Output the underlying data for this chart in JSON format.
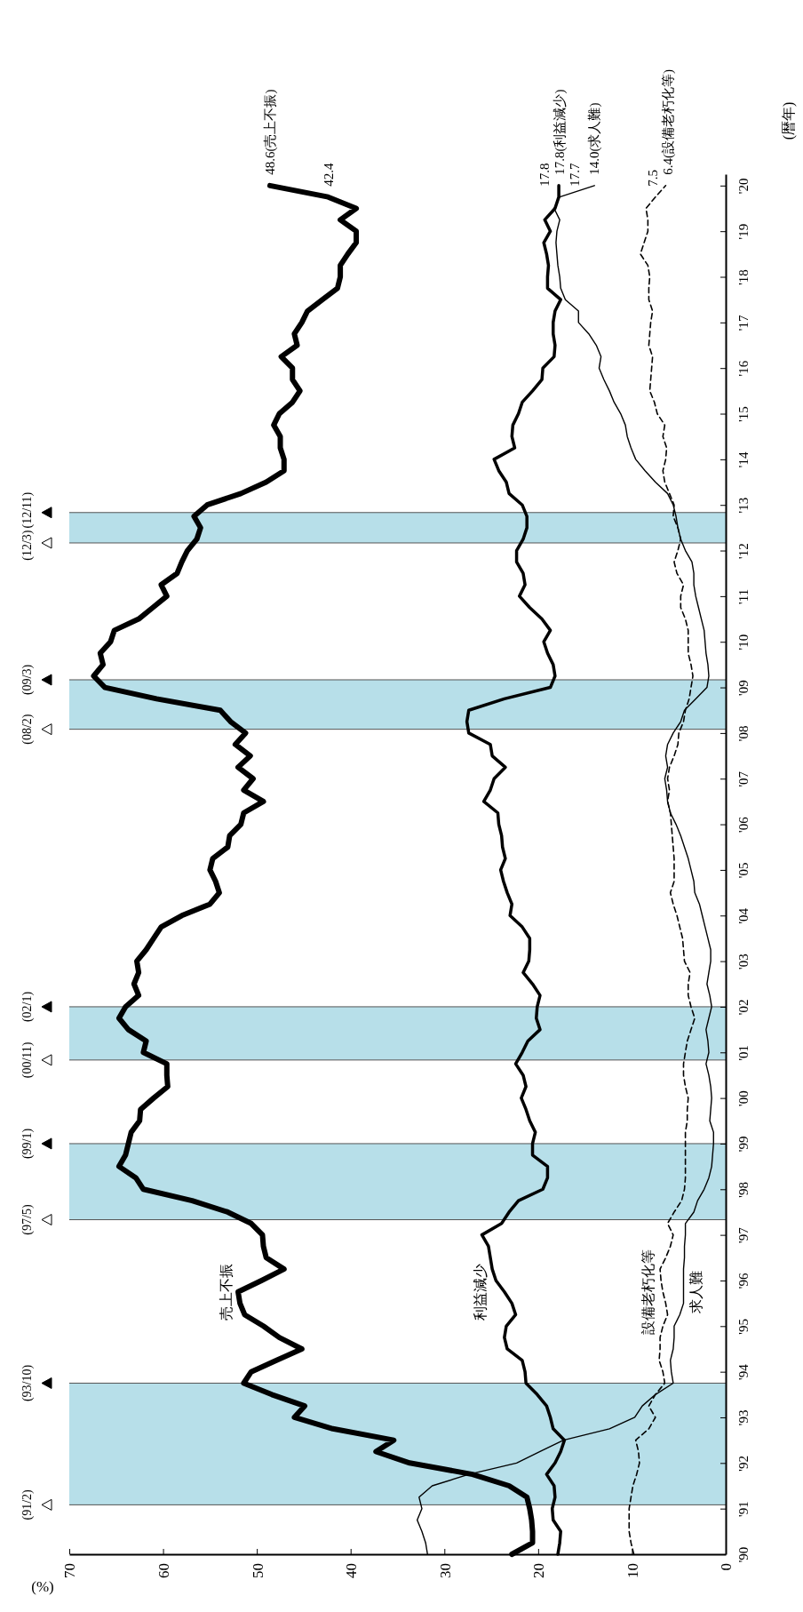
{
  "chart_data": {
    "type": "line",
    "xlabel": "(%)",
    "ylabel": "(暦年)",
    "xlim": [
      70,
      0
    ],
    "xticks": [
      0,
      10,
      20,
      30,
      40,
      50,
      60,
      70
    ],
    "ylim": [
      1990,
      2020.25
    ],
    "yticks": [
      {
        "value": 1990,
        "label": "'90"
      },
      {
        "value": 1991,
        "label": "'91"
      },
      {
        "value": 1992,
        "label": "'92"
      },
      {
        "value": 1993,
        "label": "'93"
      },
      {
        "value": 1994,
        "label": "'94"
      },
      {
        "value": 1995,
        "label": "'95"
      },
      {
        "value": 1996,
        "label": "'96"
      },
      {
        "value": 1997,
        "label": "'97"
      },
      {
        "value": 1998,
        "label": "'98"
      },
      {
        "value": 1999,
        "label": "'99"
      },
      {
        "value": 2000,
        "label": "'00"
      },
      {
        "value": 2001,
        "label": "'01"
      },
      {
        "value": 2002,
        "label": "'02"
      },
      {
        "value": 2003,
        "label": "'03"
      },
      {
        "value": 2004,
        "label": "'04"
      },
      {
        "value": 2005,
        "label": "'05"
      },
      {
        "value": 2006,
        "label": "'06"
      },
      {
        "value": 2007,
        "label": "'07"
      },
      {
        "value": 2008,
        "label": "'08"
      },
      {
        "value": 2009,
        "label": "'09"
      },
      {
        "value": 2010,
        "label": "'10"
      },
      {
        "value": 2011,
        "label": "'11"
      },
      {
        "value": 2012,
        "label": "'12"
      },
      {
        "value": 2013,
        "label": "'13"
      },
      {
        "value": 2014,
        "label": "'14"
      },
      {
        "value": 2015,
        "label": "'15"
      },
      {
        "value": 2016,
        "label": "'16"
      },
      {
        "value": 2017,
        "label": "'17"
      },
      {
        "value": 2018,
        "label": "'18"
      },
      {
        "value": 2019,
        "label": "'19"
      },
      {
        "value": 2020,
        "label": "'20"
      }
    ],
    "series": [
      {
        "name": "売上不振",
        "color": "#000000",
        "line_style": "solid",
        "x": [
          22.8,
          20.6,
          20.6,
          20.7,
          20.9,
          21.2,
          23.1,
          27.0,
          33.7,
          37.3,
          35.4,
          41.9,
          46.0,
          44.9,
          48.4,
          51.4,
          50.6,
          47.9,
          45.2,
          47.6,
          49.3,
          51.3,
          51.8,
          52.0,
          49.5,
          47.1,
          49.0,
          49.3,
          49.4,
          50.6,
          53.1,
          56.9,
          62.1,
          62.9,
          64.7,
          64.0,
          63.7,
          63.4,
          62.5,
          62.4,
          61.0,
          59.5,
          59.6,
          59.6,
          62.1,
          61.8,
          63.7,
          64.7,
          64.0,
          62.6,
          63.1,
          62.6,
          62.8,
          61.8,
          61.0,
          60.2,
          58.0,
          55.0,
          54.0,
          54.4,
          55.0,
          54.7,
          53.1,
          52.9,
          51.7,
          51.4,
          49.3,
          51.4,
          50.4,
          52.0,
          50.7,
          52.3,
          51.2,
          52.8,
          53.9,
          60.7,
          66.2,
          67.4,
          66.4,
          66.7,
          65.6,
          65.2,
          62.6,
          61.1,
          59.6,
          60.2,
          58.5,
          58.0,
          57.4,
          56.4,
          56.0,
          56.7,
          55.3,
          51.7,
          49.0,
          47.1,
          47.1,
          47.5,
          47.5,
          48.2,
          47.6,
          46.2,
          45.4,
          46.2,
          46.2,
          47.4,
          45.7,
          46.0,
          45.2,
          44.6,
          43.0,
          41.4,
          41.1,
          41.1,
          40.3,
          39.4,
          39.4,
          41.1,
          39.4,
          42.4,
          48.6
        ],
        "values": [
          1990,
          1990.25,
          1990.5,
          1990.75,
          1991,
          1991.25,
          1991.5,
          1991.75,
          1992,
          1992.25,
          1992.5,
          1992.75,
          1993,
          1993.25,
          1993.5,
          1993.75,
          1994,
          1994.25,
          1994.5,
          1994.75,
          1995,
          1995.25,
          1995.5,
          1995.75,
          1996,
          1996.25,
          1996.5,
          1996.75,
          1997,
          1997.25,
          1997.5,
          1997.75,
          1998,
          1998.25,
          1998.5,
          1998.75,
          1999,
          1999.25,
          1999.5,
          1999.75,
          2000,
          2000.25,
          2000.5,
          2000.75,
          2001,
          2001.25,
          2001.5,
          2001.75,
          2002,
          2002.25,
          2002.5,
          2002.75,
          2003,
          2003.25,
          2003.5,
          2003.75,
          2004,
          2004.25,
          2004.5,
          2004.75,
          2005,
          2005.25,
          2005.5,
          2005.75,
          2006,
          2006.25,
          2006.5,
          2006.75,
          2007,
          2007.25,
          2007.5,
          2007.75,
          2008,
          2008.25,
          2008.5,
          2008.75,
          2009,
          2009.25,
          2009.5,
          2009.75,
          2010,
          2010.25,
          2010.5,
          2010.75,
          2011,
          2011.25,
          2011.5,
          2011.75,
          2012,
          2012.25,
          2012.5,
          2012.75,
          2013,
          2013.25,
          2013.5,
          2013.75,
          2014,
          2014.25,
          2014.5,
          2014.75,
          2015,
          2015.25,
          2015.5,
          2015.75,
          2016,
          2016.25,
          2016.5,
          2016.75,
          2017,
          2017.25,
          2017.5,
          2017.75,
          2018,
          2018.25,
          2018.5,
          2018.75,
          2019,
          2019.25,
          2019.5,
          2019.75,
          2020
        ]
      },
      {
        "name": "利益減少",
        "color": "#000000",
        "line_style": "solid",
        "x": [
          17.9,
          17.7,
          17.6,
          18.4,
          18.5,
          18.2,
          18.3,
          19.1,
          18.2,
          17.6,
          17.2,
          18.4,
          18.7,
          19.1,
          20.1,
          21.3,
          21.4,
          21.7,
          23.3,
          23.6,
          23.4,
          22.4,
          22.8,
          23.6,
          24.5,
          24.9,
          25.1,
          25.3,
          26.0,
          23.9,
          23.1,
          22.1,
          19.5,
          19.0,
          19.0,
          20.6,
          20.6,
          20.3,
          20.9,
          21.3,
          21.8,
          21.3,
          21.6,
          22.4,
          21.7,
          21.1,
          19.8,
          20.2,
          20.1,
          19.8,
          20.6,
          21.6,
          21.0,
          20.9,
          20.9,
          21.7,
          23.0,
          22.8,
          23.3,
          23.7,
          24.0,
          23.5,
          23.8,
          23.9,
          24.2,
          24.3,
          25.8,
          25.1,
          24.7,
          23.5,
          24.9,
          25.1,
          27.4,
          27.6,
          27.4,
          23.6,
          18.7,
          18.2,
          18.4,
          19.0,
          19.4,
          18.7,
          19.6,
          20.9,
          22.0,
          21.4,
          21.6,
          22.3,
          22.3,
          21.6,
          21.2,
          21.2,
          21.7,
          23.1,
          23.4,
          24.2,
          24.7,
          22.5,
          22.8,
          22.7,
          22.1,
          21.7,
          20.6,
          19.6,
          19.5,
          18.3,
          18.2,
          18.4,
          18.4,
          18.2,
          17.6,
          19.0,
          19.0,
          18.9,
          19.1,
          19.4,
          18.7,
          19.3,
          18.2,
          17.8,
          17.8
        ],
        "values": [
          1990,
          1990.25,
          1990.5,
          1990.75,
          1991,
          1991.25,
          1991.5,
          1991.75,
          1992,
          1992.25,
          1992.5,
          1992.75,
          1993,
          1993.25,
          1993.5,
          1993.75,
          1994,
          1994.25,
          1994.5,
          1994.75,
          1995,
          1995.25,
          1995.5,
          1995.75,
          1996,
          1996.25,
          1996.5,
          1996.75,
          1997,
          1997.25,
          1997.5,
          1997.75,
          1998,
          1998.25,
          1998.5,
          1998.75,
          1999,
          1999.25,
          1999.5,
          1999.75,
          2000,
          2000.25,
          2000.5,
          2000.75,
          2001,
          2001.25,
          2001.5,
          2001.75,
          2002,
          2002.25,
          2002.5,
          2002.75,
          2003,
          2003.25,
          2003.5,
          2003.75,
          2004,
          2004.25,
          2004.5,
          2004.75,
          2005,
          2005.25,
          2005.5,
          2005.75,
          2006,
          2006.25,
          2006.5,
          2006.75,
          2007,
          2007.25,
          2007.5,
          2007.75,
          2008,
          2008.25,
          2008.5,
          2008.75,
          2009,
          2009.25,
          2009.5,
          2009.75,
          2010,
          2010.25,
          2010.5,
          2010.75,
          2011,
          2011.25,
          2011.5,
          2011.75,
          2012,
          2012.25,
          2012.5,
          2012.75,
          2013,
          2013.25,
          2013.5,
          2013.75,
          2014,
          2014.25,
          2014.5,
          2014.75,
          2015,
          2015.25,
          2015.5,
          2015.75,
          2016,
          2016.25,
          2016.5,
          2016.75,
          2017,
          2017.25,
          2017.5,
          2017.75,
          2018,
          2018.25,
          2018.5,
          2018.75,
          2019,
          2019.25,
          2019.5,
          2019.75,
          2020
        ]
      },
      {
        "name": "設備老朽化等",
        "color": "#000000",
        "line_style": "dashed",
        "x": [
          9.8,
          10.1,
          10.3,
          10.3,
          10.3,
          10.1,
          9.9,
          9.5,
          9.2,
          9.3,
          9.6,
          8.2,
          7.5,
          8.2,
          7.5,
          6.5,
          6.7,
          7.1,
          7.0,
          7.0,
          6.7,
          6.2,
          6.4,
          6.7,
          6.9,
          7.0,
          6.4,
          5.9,
          5.6,
          6.2,
          5.5,
          4.7,
          4.4,
          4.3,
          4.3,
          4.3,
          4.3,
          4.3,
          4.1,
          4.1,
          4.0,
          4.3,
          4.5,
          4.5,
          4.3,
          4.1,
          3.7,
          3.3,
          3.7,
          4.0,
          4.0,
          3.8,
          4.4,
          4.5,
          4.6,
          4.9,
          5.2,
          5.6,
          5.9,
          5.5,
          5.5,
          5.5,
          5.6,
          5.7,
          5.8,
          5.9,
          6.2,
          6.0,
          6.2,
          6.0,
          5.5,
          5.1,
          5.0,
          4.5,
          4.3,
          3.9,
          3.7,
          3.5,
          3.7,
          4.0,
          4.0,
          4.0,
          4.3,
          4.8,
          4.8,
          4.5,
          5.2,
          5.5,
          5.1,
          4.8,
          5.1,
          5.6,
          5.5,
          6.0,
          6.5,
          6.7,
          6.4,
          6.3,
          6.7,
          6.5,
          7.3,
          7.6,
          8.1,
          8.0,
          7.9,
          7.8,
          8.2,
          8.1,
          8.0,
          7.8,
          8.2,
          8.2,
          8.1,
          8.3,
          9.1,
          8.7,
          8.3,
          8.3,
          8.5,
          7.5,
          6.4
        ],
        "values": [
          1990,
          1990.25,
          1990.5,
          1990.75,
          1991,
          1991.25,
          1991.5,
          1991.75,
          1992,
          1992.25,
          1992.5,
          1992.75,
          1993,
          1993.25,
          1993.5,
          1993.75,
          1994,
          1994.25,
          1994.5,
          1994.75,
          1995,
          1995.25,
          1995.5,
          1995.75,
          1996,
          1996.25,
          1996.5,
          1996.75,
          1997,
          1997.25,
          1997.5,
          1997.75,
          1998,
          1998.25,
          1998.5,
          1998.75,
          1999,
          1999.25,
          1999.5,
          1999.75,
          2000,
          2000.25,
          2000.5,
          2000.75,
          2001,
          2001.25,
          2001.5,
          2001.75,
          2002,
          2002.25,
          2002.5,
          2002.75,
          2003,
          2003.25,
          2003.5,
          2003.75,
          2004,
          2004.25,
          2004.5,
          2004.75,
          2005,
          2005.25,
          2005.5,
          2005.75,
          2006,
          2006.25,
          2006.5,
          2006.75,
          2007,
          2007.25,
          2007.5,
          2007.75,
          2008,
          2008.25,
          2008.5,
          2008.75,
          2009,
          2009.25,
          2009.5,
          2009.75,
          2010,
          2010.25,
          2010.5,
          2010.75,
          2011,
          2011.25,
          2011.5,
          2011.75,
          2012,
          2012.25,
          2012.5,
          2012.75,
          2013,
          2013.25,
          2013.5,
          2013.75,
          2014,
          2014.25,
          2014.5,
          2014.75,
          2015,
          2015.25,
          2015.5,
          2015.75,
          2016,
          2016.25,
          2016.5,
          2016.75,
          2017,
          2017.25,
          2017.5,
          2017.75,
          2018,
          2018.25,
          2018.5,
          2018.75,
          2019,
          2019.25,
          2019.5,
          2019.75,
          2020
        ]
      },
      {
        "name": "求人難",
        "color": "#000000",
        "line_style": "solid",
        "x": [
          31.8,
          32.0,
          32.4,
          32.9,
          32.4,
          32.7,
          31.3,
          27.4,
          22.3,
          19.8,
          17.3,
          12.4,
          9.7,
          8.9,
          7.5,
          5.6,
          5.8,
          5.9,
          5.6,
          5.5,
          5.5,
          4.9,
          4.5,
          4.5,
          4.5,
          4.5,
          4.4,
          4.4,
          4.3,
          4.3,
          3.4,
          3.0,
          2.3,
          1.8,
          1.5,
          1.4,
          1.3,
          1.3,
          1.7,
          1.6,
          1.5,
          1.6,
          1.8,
          2.1,
          1.8,
          1.9,
          2.1,
          1.8,
          1.5,
          1.7,
          2.0,
          1.8,
          1.6,
          1.6,
          1.9,
          2.2,
          2.5,
          2.8,
          3.3,
          3.4,
          3.7,
          4.0,
          4.4,
          4.8,
          5.3,
          5.9,
          6.2,
          6.3,
          6.5,
          6.2,
          6.4,
          6.2,
          5.6,
          4.8,
          4.4,
          3.2,
          2.0,
          1.8,
          1.9,
          2.1,
          2.2,
          2.3,
          2.6,
          2.9,
          3.2,
          3.4,
          3.4,
          3.6,
          4.3,
          4.8,
          5.1,
          5.3,
          5.6,
          6.2,
          7.5,
          8.6,
          9.6,
          10.1,
          10.5,
          10.7,
          11.2,
          11.9,
          12.4,
          13.0,
          13.5,
          13.3,
          13.8,
          14.6,
          15.7,
          15.7,
          17.1,
          17.6,
          17.7,
          17.9,
          18.0,
          18.1,
          18.0,
          17.7,
          18.3,
          17.7,
          14.0
        ],
        "values": [
          1990,
          1990.25,
          1990.5,
          1990.75,
          1991,
          1991.25,
          1991.5,
          1991.75,
          1992,
          1992.25,
          1992.5,
          1992.75,
          1993,
          1993.25,
          1993.5,
          1993.75,
          1994,
          1994.25,
          1994.5,
          1994.75,
          1995,
          1995.25,
          1995.5,
          1995.75,
          1996,
          1996.25,
          1996.5,
          1996.75,
          1997,
          1997.25,
          1997.5,
          1997.75,
          1998,
          1998.25,
          1998.5,
          1998.75,
          1999,
          1999.25,
          1999.5,
          1999.75,
          2000,
          2000.25,
          2000.5,
          2000.75,
          2001,
          2001.25,
          2001.5,
          2001.75,
          2002,
          2002.25,
          2002.5,
          2002.75,
          2003,
          2003.25,
          2003.5,
          2003.75,
          2004,
          2004.25,
          2004.5,
          2004.75,
          2005,
          2005.25,
          2005.5,
          2005.75,
          2006,
          2006.25,
          2006.5,
          2006.75,
          2007,
          2007.25,
          2007.5,
          2007.75,
          2008,
          2008.25,
          2008.5,
          2008.75,
          2009,
          2009.25,
          2009.5,
          2009.75,
          2010,
          2010.25,
          2010.5,
          2010.75,
          2011,
          2011.25,
          2011.5,
          2011.75,
          2012,
          2012.25,
          2012.5,
          2012.75,
          2013,
          2013.25,
          2013.5,
          2013.75,
          2014,
          2014.25,
          2014.5,
          2014.75,
          2015,
          2015.25,
          2015.5,
          2015.75,
          2016,
          2016.25,
          2016.5,
          2016.75,
          2017,
          2017.25,
          2017.5,
          2017.75,
          2018,
          2018.25,
          2018.5,
          2018.75,
          2019,
          2019.25,
          2019.5,
          2019.75,
          2020
        ]
      }
    ],
    "bands": [
      {
        "axis": "y",
        "from": 1991.083,
        "to": 1993.75,
        "color": "#b7dfe9"
      },
      {
        "axis": "y",
        "from": 1997.333,
        "to": 1999.0,
        "color": "#b7dfe9"
      },
      {
        "axis": "y",
        "from": 2000.833,
        "to": 2002.0,
        "color": "#b7dfe9"
      },
      {
        "axis": "y",
        "from": 2008.083,
        "to": 2009.167,
        "color": "#b7dfe9"
      },
      {
        "axis": "y",
        "from": 2012.167,
        "to": 2012.833,
        "color": "#b7dfe9"
      }
    ],
    "ref_lines": [
      {
        "axis": "y",
        "value": 1991.083,
        "color": "#555555"
      },
      {
        "axis": "y",
        "value": 1993.75,
        "color": "#555555"
      },
      {
        "axis": "y",
        "value": 1997.333,
        "color": "#555555"
      },
      {
        "axis": "y",
        "value": 1999.0,
        "color": "#555555"
      },
      {
        "axis": "y",
        "value": 2000.833,
        "color": "#555555"
      },
      {
        "axis": "y",
        "value": 2002.0,
        "color": "#555555"
      },
      {
        "axis": "y",
        "value": 2008.083,
        "color": "#555555"
      },
      {
        "axis": "y",
        "value": 2009.167,
        "color": "#555555"
      },
      {
        "axis": "y",
        "value": 2012.167,
        "color": "#555555"
      },
      {
        "axis": "y",
        "value": 2012.833,
        "color": "#555555"
      }
    ],
    "annotations": [
      {
        "text": "(91/2)",
        "x": 70,
        "y": 1991.083
      },
      {
        "text": "(93/10)",
        "x": 70,
        "y": 1993.75
      },
      {
        "text": "(97/5)",
        "x": 70,
        "y": 1997.333
      },
      {
        "text": "(99/1)",
        "x": 70,
        "y": 1999.0
      },
      {
        "text": "(00/11)",
        "x": 70,
        "y": 2000.833
      },
      {
        "text": "(02/1)",
        "x": 70,
        "y": 2002.0
      },
      {
        "text": "(08/2)",
        "x": 70,
        "y": 2008.083
      },
      {
        "text": "(09/3)",
        "x": 70,
        "y": 2009.167
      },
      {
        "text": "(12/3)",
        "x": 70,
        "y": 2012.167
      },
      {
        "text": "(12/11)",
        "x": 70,
        "y": 2012.833
      },
      {
        "text": "48.6(売上不振)",
        "x": 48.6,
        "y": 2020
      },
      {
        "text": "42.4",
        "x": 42.4,
        "y": 2019.75
      },
      {
        "text": "17.8",
        "x": 17.8,
        "y": 2019.75
      },
      {
        "text": "17.8(利益減少)",
        "x": 17.8,
        "y": 2020
      },
      {
        "text": "17.7",
        "x": 17.7,
        "y": 2019.75
      },
      {
        "text": "14.0(求人難)",
        "x": 14.0,
        "y": 2020
      },
      {
        "text": "7.5",
        "x": 7.5,
        "y": 2019.75
      },
      {
        "text": "6.4(設備老朽化等)",
        "x": 6.4,
        "y": 2020
      }
    ]
  }
}
